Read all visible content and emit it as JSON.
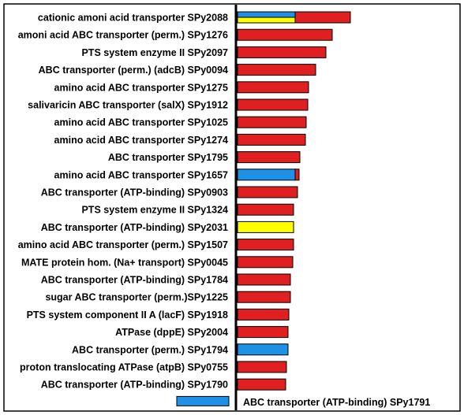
{
  "chart_data": {
    "type": "bar",
    "orientation": "horizontal",
    "title": "",
    "xlabel": "",
    "ylabel": "",
    "grid": false,
    "legend": "none",
    "colors": {
      "red": "#e02020",
      "blue": "#1e90e6",
      "yellow": "#ffff00",
      "frame": "#000000"
    },
    "categories": [
      "cationic amoni acid transporter SPy2088",
      "amoni acid ABC transporter (perm.) SPy1276",
      "PTS system enzyme II SPy2097",
      "ABC transporter (perm.) (adcB) SPy0094",
      "amino acid ABC transporter SPy1275",
      "salivaricin ABC transporter (salX) SPy1912",
      "amino acid ABC transporter SPy1025",
      "amino acid ABC transporter SPy1274",
      "ABC transporter SPy1795",
      "amino acid ABC transporter SPy1657",
      "ABC transporter (ATP-binding) SPy0903",
      "PTS system enzyme II SPy1324",
      "ABC transporter (ATP-binding) SPy2031",
      "amino acid ABC transporter (perm.) SPy1507",
      "MATE protein hom. (Na+ transport) SPy0045",
      "ABC transporter (ATP-binding) SPy1784",
      "sugar ABC transporter (perm.)SPy1225",
      "PTS system  component  II A (lacF) SPy1918",
      "ATPase  (dppE) SPy2004",
      "ABC transporter (perm.) SPy1794",
      "proton translocating ATPase (atpB) SPy0755",
      "ABC transporter (ATP-binding) SPy1790",
      "ABC transporter (ATP-binding) SPy1791"
    ],
    "bars": [
      {
        "value": 145,
        "segments": [
          {
            "color": "blue",
            "from": 0,
            "to": 75,
            "half": "top"
          },
          {
            "color": "yellow",
            "from": 0,
            "to": 75,
            "half": "bottom"
          },
          {
            "color": "red",
            "from": 75,
            "to": 145
          }
        ]
      },
      {
        "value": 122,
        "segments": [
          {
            "color": "red",
            "from": 0,
            "to": 122
          }
        ]
      },
      {
        "value": 114,
        "segments": [
          {
            "color": "red",
            "from": 0,
            "to": 114
          }
        ]
      },
      {
        "value": 101,
        "segments": [
          {
            "color": "red",
            "from": 0,
            "to": 101
          }
        ]
      },
      {
        "value": 92,
        "segments": [
          {
            "color": "red",
            "from": 0,
            "to": 92
          }
        ]
      },
      {
        "value": 91,
        "segments": [
          {
            "color": "red",
            "from": 0,
            "to": 91
          }
        ]
      },
      {
        "value": 89,
        "segments": [
          {
            "color": "red",
            "from": 0,
            "to": 89
          }
        ]
      },
      {
        "value": 88,
        "segments": [
          {
            "color": "red",
            "from": 0,
            "to": 88
          }
        ]
      },
      {
        "value": 81,
        "segments": [
          {
            "color": "red",
            "from": 0,
            "to": 81
          }
        ]
      },
      {
        "value": 80,
        "segments": [
          {
            "color": "blue",
            "from": 0,
            "to": 75
          },
          {
            "color": "red",
            "from": 75,
            "to": 80
          }
        ]
      },
      {
        "value": 78,
        "segments": [
          {
            "color": "red",
            "from": 0,
            "to": 78
          }
        ]
      },
      {
        "value": 73,
        "segments": [
          {
            "color": "red",
            "from": 0,
            "to": 73
          }
        ]
      },
      {
        "value": 73,
        "segments": [
          {
            "color": "yellow",
            "from": 0,
            "to": 73
          }
        ]
      },
      {
        "value": 73,
        "segments": [
          {
            "color": "red",
            "from": 0,
            "to": 73
          }
        ]
      },
      {
        "value": 72,
        "segments": [
          {
            "color": "red",
            "from": 0,
            "to": 72
          }
        ]
      },
      {
        "value": 69,
        "segments": [
          {
            "color": "red",
            "from": 0,
            "to": 69
          }
        ]
      },
      {
        "value": 69,
        "segments": [
          {
            "color": "red",
            "from": 0,
            "to": 69
          }
        ]
      },
      {
        "value": 67,
        "segments": [
          {
            "color": "red",
            "from": 0,
            "to": 67
          }
        ]
      },
      {
        "value": 66,
        "segments": [
          {
            "color": "red",
            "from": 0,
            "to": 66
          }
        ]
      },
      {
        "value": 66,
        "segments": [
          {
            "color": "blue",
            "from": 0,
            "to": 66
          }
        ]
      },
      {
        "value": 64,
        "segments": [
          {
            "color": "red",
            "from": 0,
            "to": 64
          }
        ]
      },
      {
        "value": 63,
        "segments": [
          {
            "color": "red",
            "from": 0,
            "to": 63
          }
        ]
      },
      {
        "value": -72,
        "segments": [
          {
            "color": "blue",
            "from": -72,
            "to": 0
          }
        ]
      }
    ],
    "xlim": [
      -75,
      290
    ]
  }
}
